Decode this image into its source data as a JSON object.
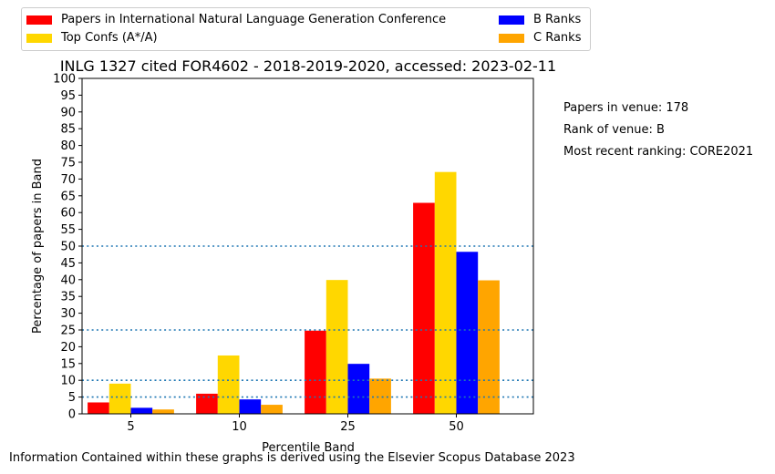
{
  "chart_data": {
    "type": "bar",
    "title": "INLG 1327 cited FOR4602 - 2018-2019-2020, accessed: 2023-02-11",
    "xlabel": "Percentile Band",
    "ylabel": "Percentage of papers in Band",
    "categories": [
      "5",
      "10",
      "25",
      "50"
    ],
    "ylim": [
      0,
      100
    ],
    "yticks": [
      0,
      5,
      10,
      15,
      20,
      25,
      30,
      35,
      40,
      45,
      50,
      55,
      60,
      65,
      70,
      75,
      80,
      85,
      90,
      95,
      100
    ],
    "reference_lines": [
      5,
      10,
      25,
      50
    ],
    "legend_position": "top-left, above plot",
    "grid": false,
    "series": [
      {
        "name": "Papers in International Natural Language Generation Conference",
        "color": "#ff0000",
        "values": [
          3.4,
          6.0,
          24.8,
          62.9
        ]
      },
      {
        "name": "Top Confs (A*/A)",
        "color": "#ffd700",
        "values": [
          9.0,
          17.4,
          39.9,
          72.1
        ]
      },
      {
        "name": "B Ranks",
        "color": "#0000ff",
        "values": [
          1.8,
          4.3,
          14.9,
          48.3
        ]
      },
      {
        "name": "C Ranks",
        "color": "#ffa500",
        "values": [
          1.3,
          2.7,
          10.5,
          39.8
        ]
      }
    ]
  },
  "legend": {
    "item1": "Papers in International Natural Language Generation Conference",
    "item2": "Top Confs (A*/A)",
    "item3": "B Ranks",
    "item4": "C Ranks"
  },
  "info": {
    "papers": "Papers in venue: 178",
    "rank": "Rank of venue: B",
    "ranking": "Most recent ranking: CORE2021"
  },
  "footer": "Information Contained within these graphs is derived using the Elsevier Scopus Database 2023"
}
